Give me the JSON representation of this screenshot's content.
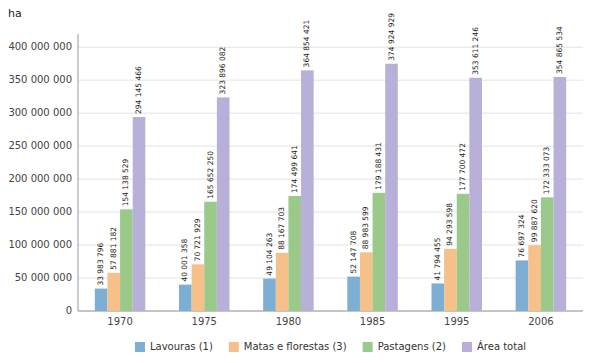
{
  "chart_data": {
    "type": "bar",
    "y_label": "ha",
    "categories": [
      "1970",
      "1975",
      "1980",
      "1985",
      "1995",
      "2006"
    ],
    "series": [
      {
        "name": "Lavouras (1)",
        "color": "#7daed4",
        "values": [
          33983796,
          40001358,
          49104263,
          52147708,
          41794455,
          76697324
        ],
        "value_labels": [
          "33 983 796",
          "40 001 358",
          "49 104 263",
          "52 147 708",
          "41 794 455",
          "76 697 324"
        ]
      },
      {
        "name": "Matas e florestas (3)",
        "color": "#f5c08a",
        "values": [
          57881182,
          70721929,
          88167703,
          88983599,
          94293598,
          99887620
        ],
        "value_labels": [
          "57 881 182",
          "70 721 929",
          "88 167 703",
          "88 983 599",
          "94 293 598",
          "99 887 620"
        ]
      },
      {
        "name": "Pastagens (2)",
        "color": "#9ac98a",
        "values": [
          154138529,
          165652250,
          174499641,
          179188431,
          177700472,
          172333073
        ],
        "value_labels": [
          "154 138 529",
          "165 652 250",
          "174 499 641",
          "179 188 431",
          "177 700 472",
          "172 333 073"
        ]
      },
      {
        "name": "Área total",
        "color": "#b8b0d8",
        "values": [
          294145466,
          323896082,
          364854421,
          374924929,
          353611246,
          354865534
        ],
        "value_labels": [
          "294 145 466",
          "323 896 082",
          "364 854 421",
          "374 924 929",
          "353 611 246",
          "354 865 534"
        ]
      }
    ],
    "ylim": [
      0,
      420000000
    ],
    "yticks": [
      0,
      {
        "value": 50000000,
        "label": "50 000 000"
      },
      {
        "value": 100000000,
        "label": "100 000 000"
      },
      {
        "value": 150000000,
        "label": "150 000 000"
      },
      {
        "value": 200000000,
        "label": "200 000 000"
      },
      {
        "value": 250000000,
        "label": "250 000 000"
      },
      {
        "value": 300000000,
        "label": "300 000 000"
      },
      {
        "value": 350000000,
        "label": "350 000 000"
      },
      {
        "value": 400000000,
        "label": "400 000 000"
      }
    ],
    "grid": true,
    "data_labels": true,
    "legend": "bottom"
  }
}
